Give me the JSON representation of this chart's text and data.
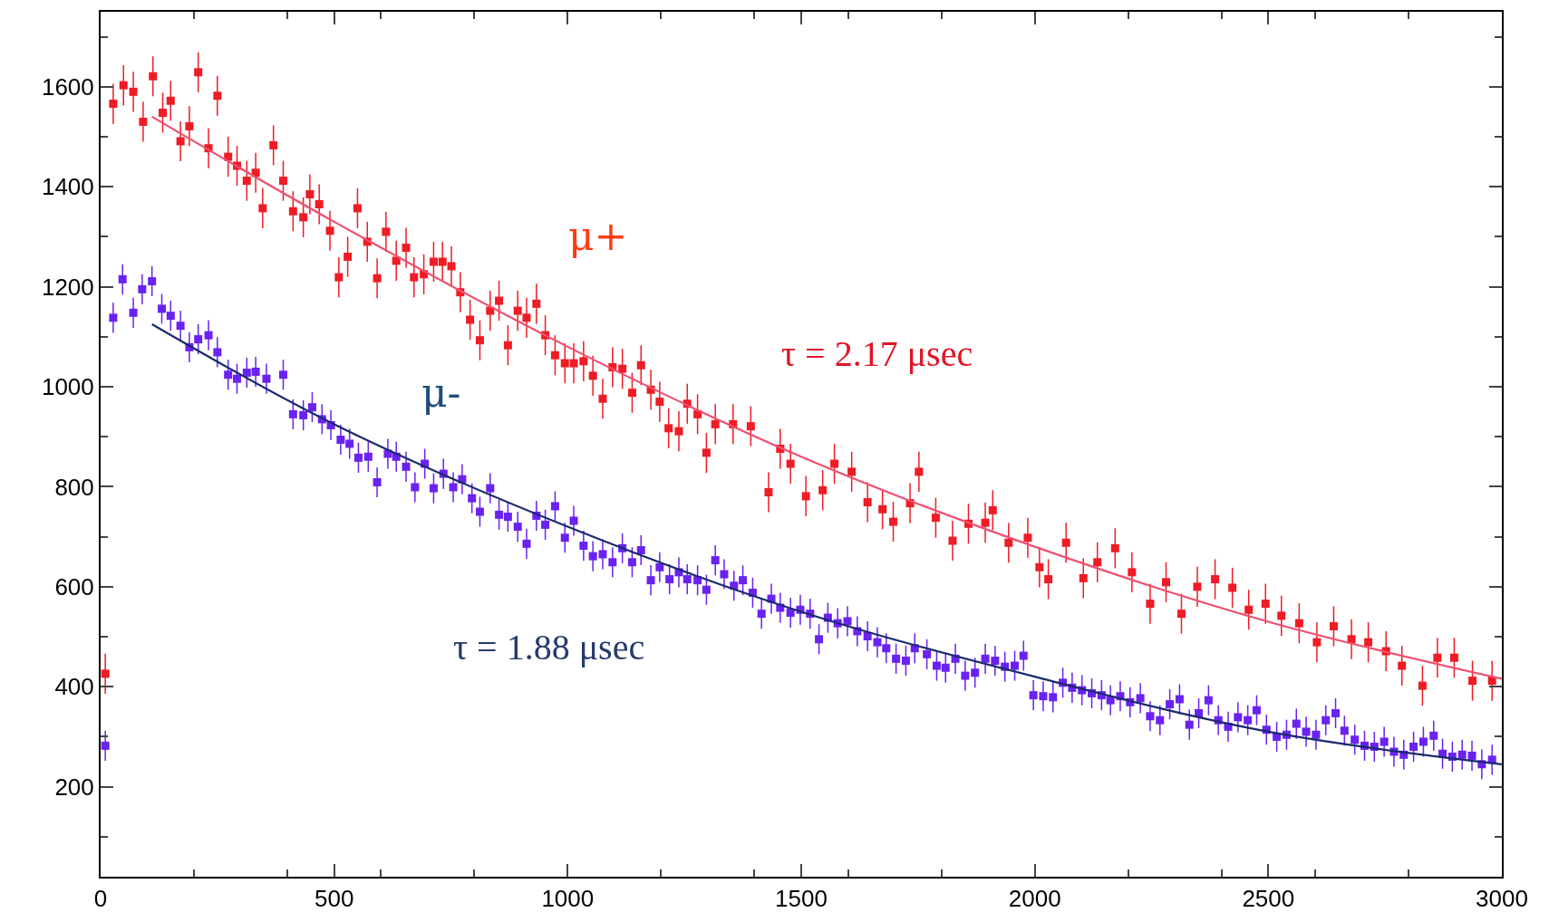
{
  "chart_data": {
    "type": "scatter",
    "xlim": [
      0,
      3000
    ],
    "ylim": [
      20,
      1750
    ],
    "xticks": [
      0,
      500,
      1000,
      1500,
      2000,
      2500,
      3000
    ],
    "yticks": [
      200,
      400,
      600,
      800,
      1000,
      1200,
      1400,
      1600
    ],
    "marker": "square",
    "annotations": [
      "μ+",
      "τ = 2.17 μsec",
      "μ-",
      "τ = 1.88 μsec"
    ],
    "series": [
      {
        "color": "#ee1c25",
        "x": [
          10,
          27,
          49,
          70,
          91,
          112,
          133,
          150,
          171,
          190,
          209,
          231,
          250,
          273,
          292,
          313,
          332,
          347,
          370,
          391,
          412,
          434,
          448,
          468,
          491,
          510,
          529,
          550,
          571,
          592,
          611,
          633,
          654,
          671,
          692,
          713,
          732,
          751,
          770,
          791,
          812,
          834,
          853,
          872,
          893,
          912,
          933,
          952,
          973,
          994,
          1013,
          1034,
          1054,
          1075,
          1096,
          1117,
          1138,
          1157,
          1178,
          1197,
          1216,
          1238,
          1256,
          1278,
          1297,
          1316,
          1354,
          1392,
          1430,
          1455,
          1477,
          1510,
          1546,
          1571,
          1608,
          1642,
          1674,
          1697,
          1733,
          1752,
          1788,
          1824,
          1858,
          1894,
          1910,
          1944,
          1985,
          2010,
          2029,
          2067,
          2104,
          2134,
          2172,
          2208,
          2247,
          2281,
          2314,
          2348,
          2386,
          2423,
          2458,
          2494,
          2528,
          2566,
          2604,
          2640,
          2678,
          2714,
          2752,
          2786,
          2830,
          2862,
          2898,
          2937,
          2979
        ],
        "values": [
          426,
          1566,
          1603,
          1590,
          1530,
          1621,
          1548,
          1572,
          1491,
          1521,
          1629,
          1477,
          1582,
          1460,
          1442,
          1412,
          1428,
          1357,
          1483,
          1412,
          1351,
          1339,
          1385,
          1365,
          1312,
          1219,
          1260,
          1357,
          1290,
          1217,
          1310,
          1252,
          1278,
          1219,
          1225,
          1250,
          1250,
          1241,
          1189,
          1134,
          1093,
          1152,
          1172,
          1083,
          1152,
          1138,
          1166,
          1103,
          1063,
          1047,
          1047,
          1051,
          1022,
          976,
          1039,
          1036,
          988,
          1043,
          994,
          970,
          917,
          911,
          966,
          945,
          868,
          925,
          925,
          921,
          789,
          876,
          846,
          781,
          793,
          846,
          830,
          769,
          755,
          730,
          767,
          830,
          738,
          692,
          726,
          728,
          753,
          688,
          698,
          639,
          615,
          688,
          617,
          649,
          677,
          629,
          566,
          609,
          546,
          600,
          615,
          598,
          554,
          566,
          542,
          527,
          489,
          521,
          495,
          489,
          471,
          442,
          402,
          458,
          458,
          412,
          412
        ],
        "errors": [
          40,
          40,
          40,
          40,
          40,
          40,
          40,
          40,
          40,
          40,
          40,
          40,
          40,
          40,
          40,
          40,
          40,
          40,
          40,
          40,
          40,
          40,
          40,
          40,
          40,
          40,
          40,
          40,
          40,
          40,
          40,
          40,
          40,
          40,
          40,
          40,
          40,
          40,
          40,
          40,
          40,
          40,
          40,
          40,
          40,
          40,
          40,
          40,
          40,
          40,
          40,
          40,
          40,
          40,
          40,
          40,
          40,
          40,
          40,
          40,
          40,
          40,
          40,
          40,
          40,
          40,
          40,
          40,
          40,
          40,
          40,
          40,
          40,
          40,
          40,
          40,
          40,
          40,
          40,
          40,
          40,
          40,
          40,
          40,
          40,
          40,
          40,
          40,
          40,
          40,
          40,
          40,
          40,
          40,
          40,
          40,
          40,
          40,
          40,
          40,
          40,
          40,
          40,
          40,
          40,
          40,
          40,
          40,
          40,
          40,
          40,
          40,
          40,
          40,
          40
        ]
      },
      {
        "color": "#6a22f0",
        "x": [
          10,
          27,
          47,
          70,
          89,
          110,
          131,
          150,
          171,
          190,
          209,
          231,
          250,
          273,
          292,
          313,
          332,
          355,
          391,
          412,
          434,
          453,
          474,
          493,
          514,
          533,
          552,
          573,
          592,
          615,
          633,
          654,
          673,
          694,
          713,
          734,
          755,
          774,
          795,
          812,
          834,
          853,
          872,
          893,
          912,
          933,
          952,
          973,
          994,
          1013,
          1034,
          1054,
          1075,
          1096,
          1117,
          1138,
          1157,
          1178,
          1197,
          1218,
          1238,
          1256,
          1278,
          1297,
          1316,
          1335,
          1356,
          1375,
          1396,
          1415,
          1436,
          1455,
          1477,
          1498,
          1519,
          1538,
          1557,
          1578,
          1599,
          1620,
          1642,
          1663,
          1682,
          1703,
          1724,
          1743,
          1769,
          1790,
          1809,
          1830,
          1851,
          1872,
          1894,
          1915,
          1936,
          1957,
          1976,
          1997,
          2018,
          2039,
          2060,
          2080,
          2101,
          2122,
          2143,
          2162,
          2183,
          2204,
          2226,
          2247,
          2268,
          2289,
          2310,
          2331,
          2351,
          2372,
          2393,
          2414,
          2435,
          2456,
          2475,
          2496,
          2518,
          2539,
          2560,
          2581,
          2602,
          2623,
          2644,
          2663,
          2685,
          2706,
          2727,
          2748,
          2769,
          2790,
          2811,
          2832,
          2854,
          2873,
          2894,
          2915,
          2936,
          2957,
          2979
        ],
        "values": [
          282,
          1138,
          1215,
          1148,
          1195,
          1211,
          1156,
          1142,
          1122,
          1079,
          1095,
          1103,
          1069,
          1024,
          1016,
          1028,
          1030,
          1016,
          1024,
          945,
          943,
          959,
          935,
          923,
          894,
          886,
          858,
          860,
          809,
          866,
          860,
          840,
          799,
          846,
          797,
          826,
          799,
          815,
          777,
          750,
          797,
          744,
          740,
          720,
          686,
          742,
          724,
          761,
          698,
          732,
          682,
          661,
          665,
          649,
          677,
          649,
          673,
          613,
          639,
          615,
          629,
          615,
          613,
          594,
          653,
          625,
          602,
          613,
          588,
          546,
          576,
          558,
          548,
          554,
          546,
          495,
          538,
          527,
          531,
          511,
          501,
          489,
          477,
          456,
          452,
          477,
          465,
          442,
          438,
          456,
          422,
          428,
          456,
          452,
          440,
          442,
          462,
          383,
          381,
          379,
          408,
          398,
          393,
          387,
          383,
          373,
          381,
          369,
          377,
          341,
          333,
          365,
          375,
          324,
          347,
          373,
          333,
          320,
          339,
          333,
          353,
          314,
          300,
          304,
          326,
          310,
          304,
          333,
          347,
          312,
          294,
          282,
          280,
          290,
          270,
          264,
          280,
          290,
          302,
          266,
          260,
          264,
          262,
          245,
          254
        ],
        "errors": [
          30,
          30,
          30,
          30,
          30,
          30,
          30,
          30,
          30,
          30,
          30,
          30,
          30,
          30,
          30,
          30,
          30,
          30,
          30,
          30,
          30,
          30,
          30,
          30,
          30,
          30,
          30,
          30,
          30,
          30,
          30,
          30,
          30,
          30,
          30,
          30,
          30,
          30,
          30,
          30,
          30,
          30,
          30,
          30,
          30,
          30,
          30,
          30,
          30,
          30,
          30,
          30,
          30,
          30,
          30,
          30,
          30,
          30,
          30,
          30,
          30,
          30,
          30,
          30,
          30,
          30,
          30,
          30,
          30,
          30,
          30,
          30,
          30,
          30,
          30,
          30,
          30,
          30,
          30,
          30,
          30,
          30,
          30,
          30,
          30,
          30,
          30,
          30,
          30,
          30,
          30,
          30,
          30,
          30,
          30,
          30,
          30,
          30,
          30,
          30,
          30,
          30,
          30,
          30,
          30,
          30,
          30,
          30,
          30,
          30,
          30,
          30,
          30,
          30,
          30,
          30,
          30,
          30,
          30,
          30,
          30,
          30,
          30,
          30,
          30,
          30,
          30,
          30,
          30,
          30,
          30,
          30,
          30,
          30,
          30,
          30,
          30,
          30,
          30,
          30,
          30,
          30,
          30,
          30,
          30
        ]
      },
      {
        "type": "line",
        "marker": "none",
        "color": "#f05070",
        "x": [
          110,
          500,
          1000,
          1500,
          2000,
          2500,
          3000
        ],
        "values": [
          1540,
          1330,
          1080,
          860,
          680,
          530,
          416
        ]
      },
      {
        "type": "line",
        "marker": "none",
        "color": "#1a2a6c",
        "x": [
          110,
          500,
          1000,
          1500,
          2000,
          2500,
          3000
        ],
        "values": [
          1125,
          925,
          720,
          550,
          420,
          310,
          245
        ]
      }
    ]
  }
}
